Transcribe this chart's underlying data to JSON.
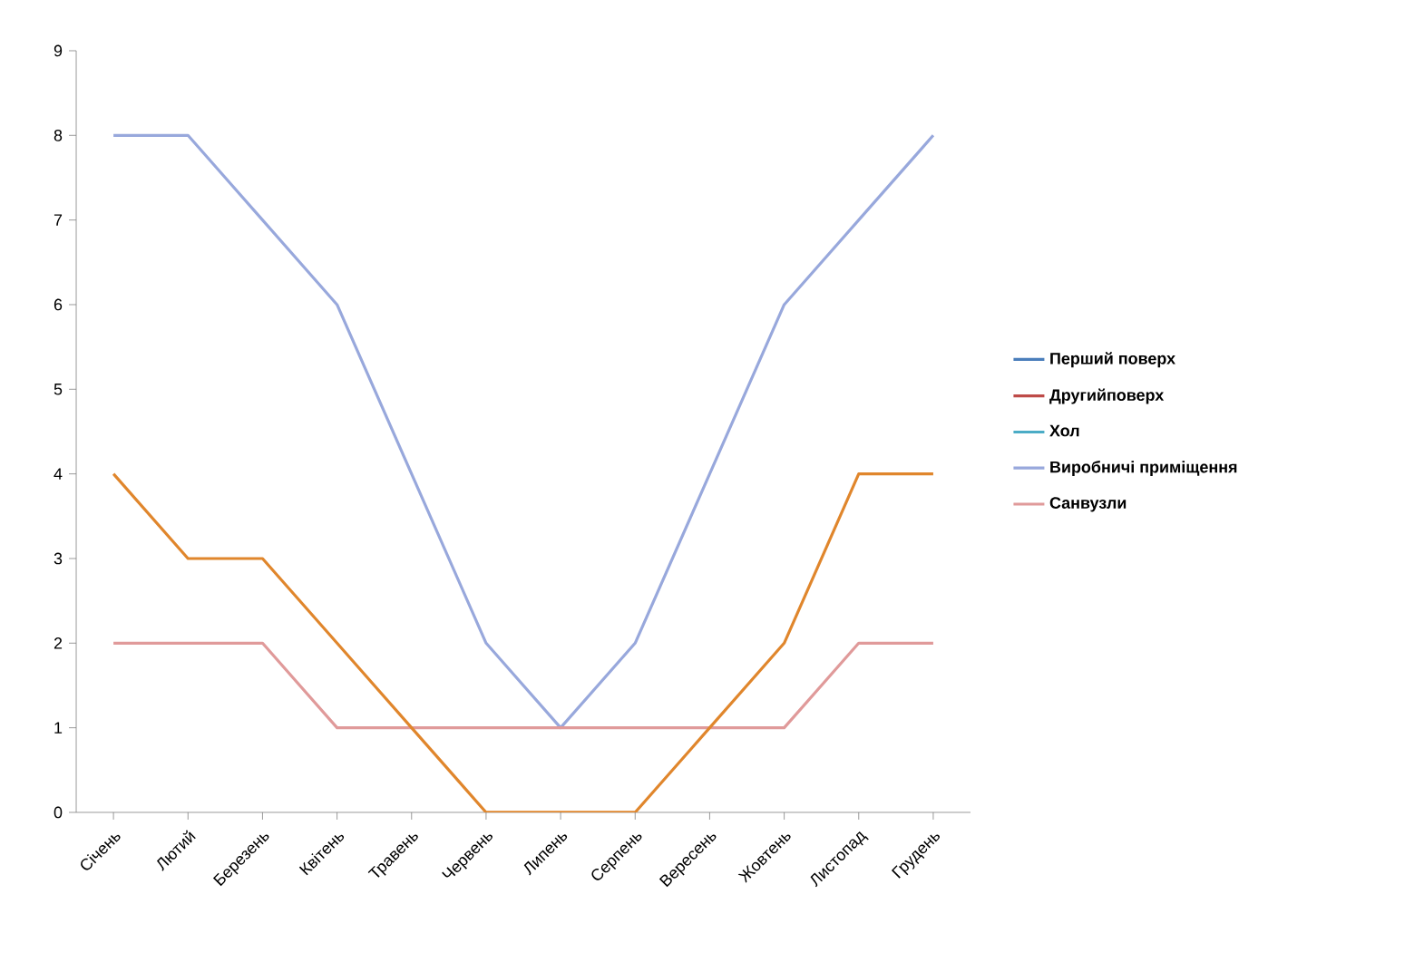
{
  "chart_data": {
    "type": "line",
    "categories": [
      "Січень",
      "Лютий",
      "Березень",
      "Квітень",
      "Травень",
      "Червень",
      "Липень",
      "Серпень",
      "Вересень",
      "Жовтень",
      "Листопад",
      "Грудень"
    ],
    "series": [
      {
        "name": "Перший поверх",
        "color": "#4a7ebb",
        "values": [
          null,
          null,
          null,
          null,
          null,
          null,
          null,
          null,
          null,
          null,
          null,
          null
        ]
      },
      {
        "name": "Другийповерх",
        "color": "#be4b48",
        "values": [
          null,
          null,
          null,
          null,
          null,
          null,
          null,
          null,
          null,
          null,
          null,
          null
        ]
      },
      {
        "name": "Хол",
        "color": "#4bacc6",
        "values": [
          null,
          null,
          null,
          null,
          null,
          null,
          null,
          null,
          null,
          null,
          null,
          null
        ]
      },
      {
        "name": "Виробничі приміщення",
        "color": "#98a8dc",
        "values": [
          8,
          8,
          7,
          6,
          4,
          2,
          1,
          2,
          4,
          6,
          7,
          8
        ]
      },
      {
        "name": "Санвузли",
        "color": "#e09a9a",
        "values": [
          2,
          2,
          2,
          1,
          1,
          1,
          1,
          1,
          1,
          1,
          2,
          2
        ]
      },
      {
        "color": "#e0862c",
        "values": [
          4,
          3,
          3,
          2,
          1,
          0,
          0,
          0,
          1,
          2,
          4,
          4
        ]
      }
    ],
    "ylim": [
      0,
      9
    ],
    "yticks": [
      0,
      1,
      2,
      3,
      4,
      5,
      6,
      7,
      8,
      9
    ],
    "grid": false,
    "legend": "right",
    "marker": "none",
    "line_style": "solid"
  }
}
